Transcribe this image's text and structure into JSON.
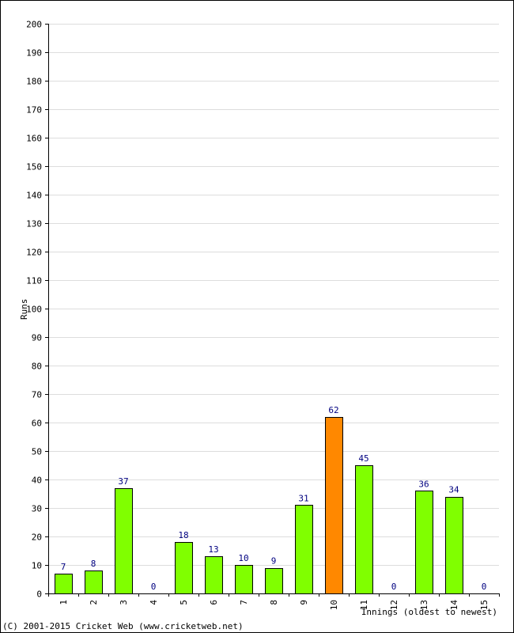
{
  "chart_data": {
    "type": "bar",
    "title": "",
    "xlabel": "Innings (oldest to newest)",
    "ylabel": "Runs",
    "ylim": [
      0,
      200
    ],
    "ytick_step": 10,
    "grid": true,
    "categories": [
      "1",
      "2",
      "3",
      "4",
      "5",
      "6",
      "7",
      "8",
      "9",
      "10",
      "11",
      "12",
      "13",
      "14",
      "15"
    ],
    "values": [
      7,
      8,
      37,
      0,
      18,
      13,
      10,
      9,
      31,
      62,
      45,
      0,
      36,
      34,
      0
    ],
    "highlight_index": 9,
    "colors": {
      "bar": "#80ff00",
      "highlight": "#ff8800",
      "data_label": "#000080",
      "grid": "#dddddd"
    }
  },
  "footer": "(C) 2001-2015 Cricket Web (www.cricketweb.net)"
}
